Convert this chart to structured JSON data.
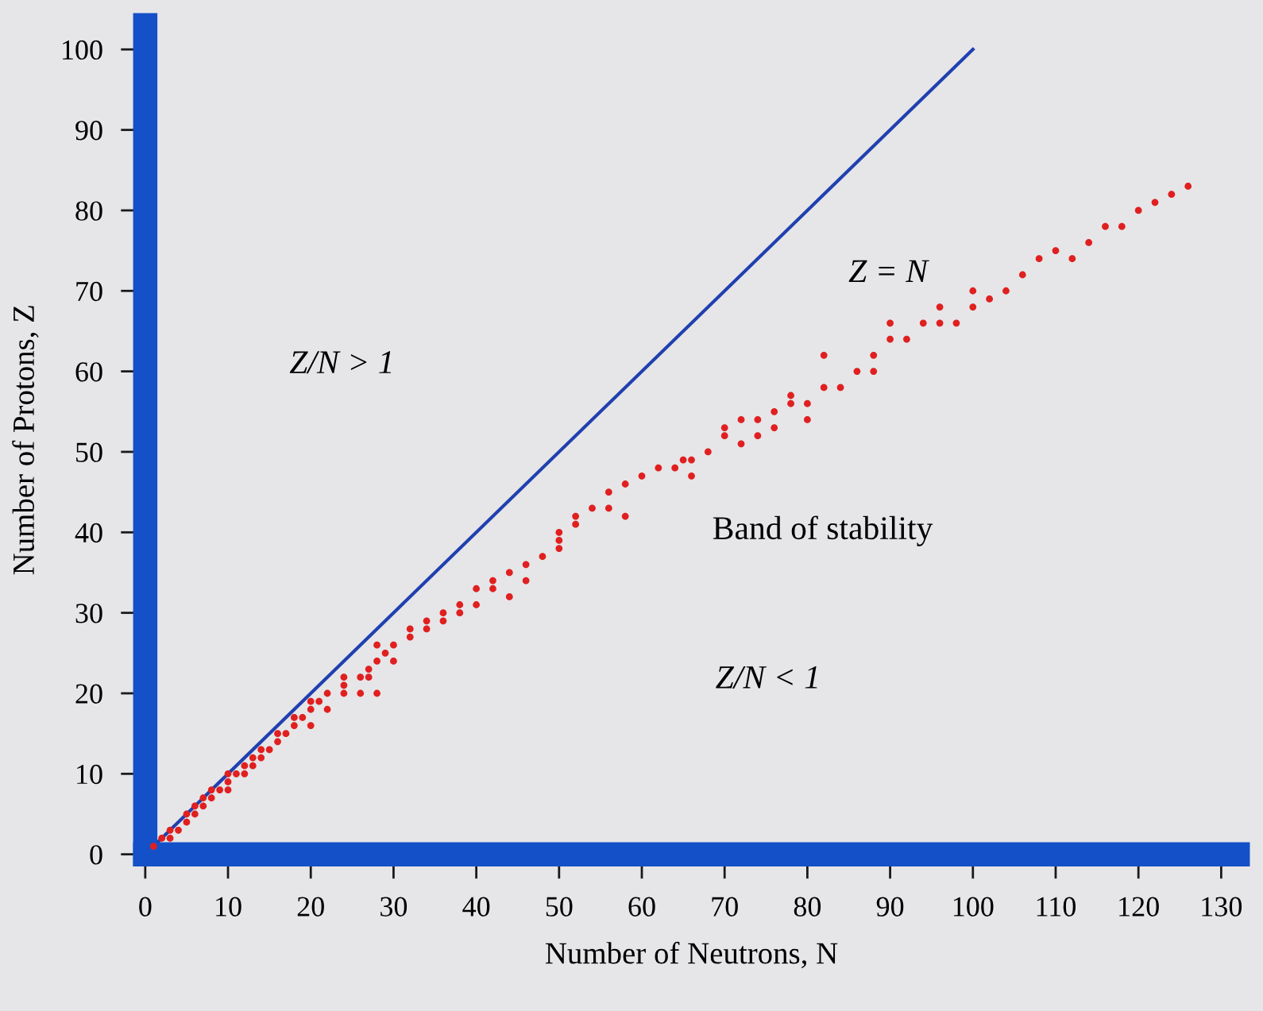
{
  "chart_data": {
    "type": "scatter",
    "xlabel": "Number of Neutrons, N",
    "ylabel": "Number of Protons, Z",
    "xlim": [
      0,
      132
    ],
    "ylim": [
      0,
      103
    ],
    "xticks": [
      0,
      10,
      20,
      30,
      40,
      50,
      60,
      70,
      80,
      90,
      100,
      110,
      120,
      130
    ],
    "yticks": [
      0,
      10,
      20,
      30,
      40,
      50,
      60,
      70,
      80,
      90,
      100
    ],
    "grid": false,
    "legend": false,
    "marker": "circle",
    "annotations": [
      "Z = N",
      "Z/N > 1",
      "Band of stability",
      "Z/N < 1"
    ],
    "series": [
      {
        "color": "#e02020",
        "x": [
          1,
          2,
          3,
          3,
          4,
          5,
          5,
          6,
          6,
          7,
          7,
          8,
          8,
          9,
          10,
          10,
          10,
          11,
          12,
          12,
          13,
          13,
          14,
          14,
          15,
          16,
          16,
          17,
          18,
          18,
          19,
          20,
          20,
          20,
          21,
          22,
          22,
          24,
          24,
          24,
          26,
          26,
          27,
          27,
          28,
          28,
          28,
          29,
          30,
          30,
          32,
          32,
          34,
          34,
          36,
          36,
          38,
          38,
          40,
          40,
          42,
          42,
          44,
          44,
          46,
          46,
          48,
          50,
          50,
          50,
          52,
          52,
          54,
          56,
          56,
          58,
          58,
          60,
          62,
          64,
          65,
          66,
          66,
          68,
          70,
          70,
          72,
          72,
          74,
          74,
          76,
          76,
          78,
          78,
          80,
          80,
          82,
          82,
          84,
          86,
          88,
          88,
          90,
          90,
          92,
          94,
          96,
          96,
          98,
          100,
          100,
          102,
          104,
          106,
          108,
          110,
          112,
          114,
          116,
          118,
          120,
          122,
          124,
          126
        ],
        "values": [
          1,
          2,
          2,
          3,
          3,
          4,
          5,
          5,
          6,
          6,
          7,
          7,
          8,
          8,
          8,
          9,
          10,
          10,
          10,
          11,
          11,
          12,
          12,
          13,
          13,
          14,
          15,
          15,
          16,
          17,
          17,
          16,
          18,
          19,
          19,
          20,
          18,
          20,
          21,
          22,
          22,
          20,
          22,
          23,
          24,
          26,
          20,
          25,
          24,
          26,
          27,
          28,
          28,
          29,
          29,
          30,
          30,
          31,
          31,
          33,
          34,
          33,
          35,
          32,
          36,
          34,
          37,
          38,
          39,
          40,
          42,
          41,
          43,
          43,
          45,
          46,
          42,
          47,
          48,
          48,
          49,
          49,
          47,
          50,
          52,
          53,
          51,
          54,
          52,
          54,
          55,
          53,
          56,
          57,
          56,
          54,
          58,
          62,
          58,
          60,
          60,
          62,
          64,
          66,
          64,
          66,
          66,
          68,
          66,
          68,
          70,
          69,
          70,
          72,
          74,
          75,
          74,
          76,
          78,
          78,
          80,
          81,
          82,
          83
        ]
      },
      {
        "type": "line",
        "color": "#2040b0",
        "x": [
          0,
          100
        ],
        "values": [
          0,
          100
        ],
        "line_style": "solid",
        "marker": "none"
      }
    ]
  }
}
